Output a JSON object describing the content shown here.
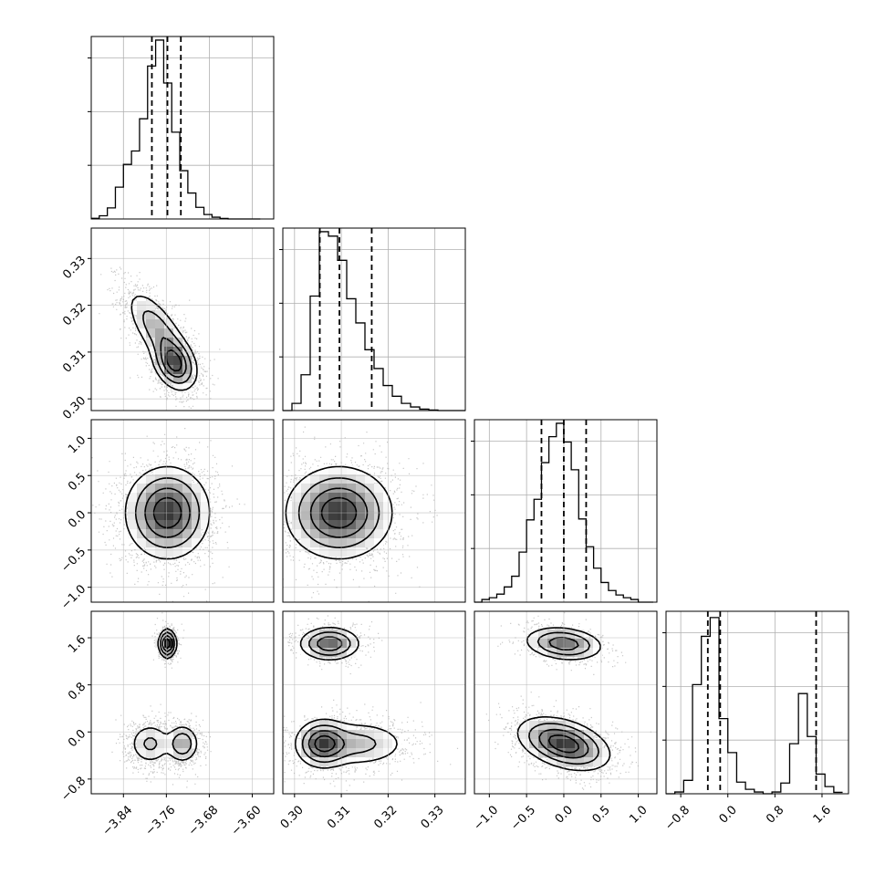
{
  "chart_data": {
    "type": "corner",
    "grid": true,
    "n_params": 4,
    "params": [
      {
        "range": [
          -3.9,
          -3.56
        ],
        "ticks": [
          -3.84,
          -3.76,
          -3.68,
          -3.6
        ],
        "tick_labels": [
          "−3.84",
          "−3.76",
          "−3.68",
          "−3.60"
        ],
        "quantiles": [
          -3.787,
          -3.758,
          -3.733
        ],
        "hist": {
          "bin_edges": [
            -3.9,
            -3.885,
            -3.87,
            -3.855,
            -3.84,
            -3.825,
            -3.81,
            -3.795,
            -3.78,
            -3.765,
            -3.75,
            -3.735,
            -3.72,
            -3.705,
            -3.69,
            -3.675,
            -3.66,
            -3.645,
            -3.63,
            -3.615,
            -3.6,
            -3.585
          ],
          "counts": [
            0.4,
            1.8,
            6.2,
            17.8,
            30.5,
            38.0,
            56.0,
            85.5,
            100,
            76.0,
            48.5,
            27.0,
            14.5,
            6.5,
            2.5,
            1.0,
            0.3,
            0,
            0,
            0,
            0
          ]
        }
      },
      {
        "range": [
          0.2975,
          0.3365
        ],
        "ticks": [
          0.3,
          0.31,
          0.32,
          0.33
        ],
        "tick_labels": [
          "0.30",
          "0.31",
          "0.32",
          "0.33"
        ],
        "quantiles": [
          0.3054,
          0.3096,
          0.3165
        ],
        "hist": {
          "bin_edges": [
            0.2975,
            0.29945,
            0.3014,
            0.30335,
            0.3053,
            0.30725,
            0.3092,
            0.31115,
            0.3131,
            0.31505,
            0.317,
            0.31895,
            0.3209,
            0.32285,
            0.3248,
            0.32675,
            0.3287,
            0.33065,
            0.3326,
            0.33455,
            0.3365
          ],
          "counts": [
            0,
            4.0,
            20.0,
            64.0,
            100,
            97.5,
            84.0,
            62.5,
            49.0,
            34.0,
            23.5,
            14.0,
            8.0,
            4.0,
            2.0,
            0.8,
            0.3,
            0,
            0,
            0
          ]
        }
      },
      {
        "range": [
          -1.2,
          1.25
        ],
        "ticks": [
          -1.0,
          -0.5,
          0.0,
          0.5,
          1.0
        ],
        "tick_labels": [
          "−1.0",
          "−0.5",
          "0.0",
          "0.5",
          "1.0"
        ],
        "quantiles": [
          -0.3,
          0.0,
          0.3
        ],
        "hist": {
          "bin_edges": [
            -1.2,
            -1.1,
            -1.0,
            -0.9,
            -0.8,
            -0.7,
            -0.6,
            -0.5,
            -0.4,
            -0.3,
            -0.2,
            -0.1,
            0.0,
            0.1,
            0.2,
            0.3,
            0.4,
            0.5,
            0.6,
            0.7,
            0.8,
            0.9,
            1.0,
            1.1,
            1.2
          ],
          "counts": [
            0,
            1.5,
            2.5,
            4.5,
            8.5,
            14.5,
            28.0,
            46.0,
            57.5,
            78.0,
            92.5,
            100,
            89.5,
            74.0,
            46.5,
            31.0,
            19.0,
            11.0,
            6.5,
            4.0,
            2.5,
            1.5,
            0,
            0
          ]
        }
      },
      {
        "range": [
          -1.05,
          2.05
        ],
        "ticks": [
          -0.8,
          0.0,
          0.8,
          1.6
        ],
        "tick_labels": [
          "−0.8",
          "0.0",
          "0.8",
          "1.6"
        ],
        "quantiles": [
          -0.34,
          -0.13,
          1.5
        ],
        "hist": {
          "bin_edges": [
            -1.05,
            -0.9,
            -0.75,
            -0.6,
            -0.45,
            -0.3,
            -0.15,
            0.0,
            0.15,
            0.3,
            0.45,
            0.6,
            0.75,
            0.9,
            1.05,
            1.2,
            1.35,
            1.5,
            1.65,
            1.8,
            1.95
          ],
          "counts": [
            0,
            1.0,
            7.5,
            61.0,
            88.0,
            98.5,
            42.0,
            23.0,
            6.5,
            2.5,
            1.0,
            0,
            1.0,
            6.0,
            28.0,
            56.0,
            32.0,
            11.0,
            4.0,
            0.8
          ]
        }
      }
    ],
    "modes2d": [
      {
        "i": 1,
        "j": 0,
        "modes": [
          {
            "mx": -3.775,
            "my": 0.3145,
            "sx": 0.03,
            "sy": 0.0045,
            "rho": -0.7,
            "w": 0.5
          },
          {
            "mx": -3.745,
            "my": 0.3075,
            "sx": 0.02,
            "sy": 0.0028,
            "rho": -0.3,
            "w": 0.5
          }
        ]
      },
      {
        "i": 2,
        "j": 0,
        "modes": [
          {
            "mx": -3.758,
            "my": 0.0,
            "sx": 0.038,
            "sy": 0.3,
            "rho": 0.0,
            "w": 1.0
          }
        ]
      },
      {
        "i": 2,
        "j": 1,
        "modes": [
          {
            "mx": 0.3095,
            "my": 0.0,
            "sx": 0.0055,
            "sy": 0.3,
            "rho": 0.0,
            "w": 1.0
          }
        ]
      },
      {
        "i": 3,
        "j": 0,
        "modes": [
          {
            "mx": -3.758,
            "my": 1.5,
            "sx": 0.008,
            "sy": 0.12,
            "rho": 0.0,
            "w": 0.28
          },
          {
            "mx": -3.79,
            "my": -0.2,
            "sx": 0.02,
            "sy": 0.18,
            "rho": 0.0,
            "w": 0.36
          },
          {
            "mx": -3.73,
            "my": -0.2,
            "sx": 0.015,
            "sy": 0.16,
            "rho": 0.0,
            "w": 0.36
          }
        ]
      },
      {
        "i": 3,
        "j": 1,
        "modes": [
          {
            "mx": 0.3075,
            "my": 1.5,
            "sx": 0.0032,
            "sy": 0.14,
            "rho": 0.0,
            "w": 0.28
          },
          {
            "mx": 0.306,
            "my": -0.2,
            "sx": 0.0028,
            "sy": 0.2,
            "rho": 0.0,
            "w": 0.38
          },
          {
            "mx": 0.3135,
            "my": -0.2,
            "sx": 0.0055,
            "sy": 0.2,
            "rho": 0.0,
            "w": 0.34
          }
        ]
      },
      {
        "i": 3,
        "j": 2,
        "modes": [
          {
            "mx": 0.0,
            "my": 1.5,
            "sx": 0.26,
            "sy": 0.14,
            "rho": -0.2,
            "w": 0.3
          },
          {
            "mx": 0.0,
            "my": -0.2,
            "sx": 0.3,
            "sy": 0.22,
            "rho": -0.4,
            "w": 0.7
          }
        ]
      }
    ]
  }
}
